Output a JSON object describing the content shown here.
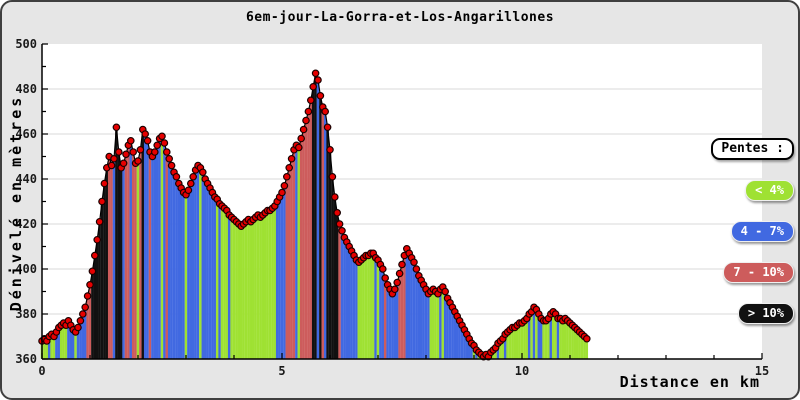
{
  "title": "6em-jour-La-Gorra-et-Los-Angarillones",
  "axes": {
    "y_label": "Dénivelé en mètres",
    "x_label": "Distance en km",
    "y_tick_labels": [
      360,
      380,
      400,
      420,
      440,
      460,
      480,
      500
    ],
    "y_minor_tick_step": 10,
    "x_tick_labels": [
      0,
      5,
      10,
      15
    ],
    "x_minor_tick_step": 1
  },
  "legend": {
    "title": "Pentes :"
  },
  "colors": {
    "figure_background": "#e6e6e6",
    "plot_background": "#ffffff",
    "grid": "#d9d9d9",
    "axis": "#000000",
    "profile_line": "#000000",
    "marker_fill": "#e60000",
    "marker_stroke": "#1a0000",
    "border": "#3f3f3f"
  },
  "chart_data": {
    "type": "area",
    "title": "6em-jour-La-Gorra-et-Los-Angarillones",
    "xlabel": "Distance en km",
    "ylabel": "Dénivelé en mètres",
    "xlim": [
      0,
      15
    ],
    "ylim": [
      360,
      500
    ],
    "grid": true,
    "legend_position": "right",
    "slope_categories": [
      {
        "label": "< 4%",
        "max_percent": 4,
        "color": "#9fe133"
      },
      {
        "label": "4 - 7%",
        "max_percent": 7,
        "color": "#4169e1"
      },
      {
        "label": "7 - 10%",
        "max_percent": 10,
        "color": "#cd5c5c"
      },
      {
        "label": "> 10%",
        "max_percent": 1000,
        "color": "#111111"
      }
    ],
    "x_start_km": 0,
    "x_step_km": 0.05,
    "total_distance_km": 11.35,
    "elevations_m": [
      368,
      369,
      368,
      370,
      371,
      370,
      372,
      374,
      375,
      376,
      375,
      377,
      375,
      373,
      372,
      374,
      377,
      380,
      383,
      388,
      393,
      399,
      406,
      413,
      421,
      430,
      438,
      445,
      450,
      446,
      449,
      463,
      452,
      445,
      447,
      451,
      455,
      457,
      452,
      447,
      448,
      453,
      462,
      460,
      457,
      452,
      450,
      452,
      455,
      458,
      459,
      456,
      452,
      449,
      446,
      443,
      441,
      438,
      436,
      434,
      433,
      435,
      438,
      441,
      444,
      446,
      445,
      443,
      440,
      438,
      436,
      434,
      432,
      431,
      429,
      428,
      427,
      426,
      424,
      423,
      422,
      421,
      420,
      419,
      420,
      421,
      422,
      421,
      422,
      423,
      424,
      423,
      424,
      425,
      426,
      426,
      427,
      428,
      430,
      432,
      434,
      437,
      441,
      445,
      449,
      453,
      455,
      454,
      458,
      462,
      466,
      470,
      475,
      481,
      487,
      484,
      477,
      472,
      470,
      463,
      453,
      441,
      432,
      425,
      420,
      417,
      414,
      412,
      410,
      408,
      406,
      404,
      403,
      404,
      405,
      406,
      406,
      407,
      407,
      405,
      404,
      402,
      400,
      396,
      393,
      391,
      389,
      391,
      394,
      398,
      402,
      406,
      409,
      407,
      405,
      403,
      400,
      397,
      395,
      393,
      391,
      389,
      390,
      391,
      390,
      389,
      391,
      392,
      390,
      387,
      385,
      383,
      381,
      379,
      377,
      375,
      373,
      371,
      369,
      367,
      366,
      364,
      363,
      362,
      361,
      362,
      361,
      363,
      364,
      365,
      367,
      368,
      369,
      371,
      372,
      373,
      374,
      374,
      375,
      376,
      376,
      377,
      378,
      380,
      381,
      383,
      382,
      380,
      378,
      377,
      377,
      378,
      380,
      381,
      380,
      378,
      378,
      377,
      378,
      377,
      376,
      375,
      374,
      373,
      372,
      371,
      370,
      369
    ]
  }
}
